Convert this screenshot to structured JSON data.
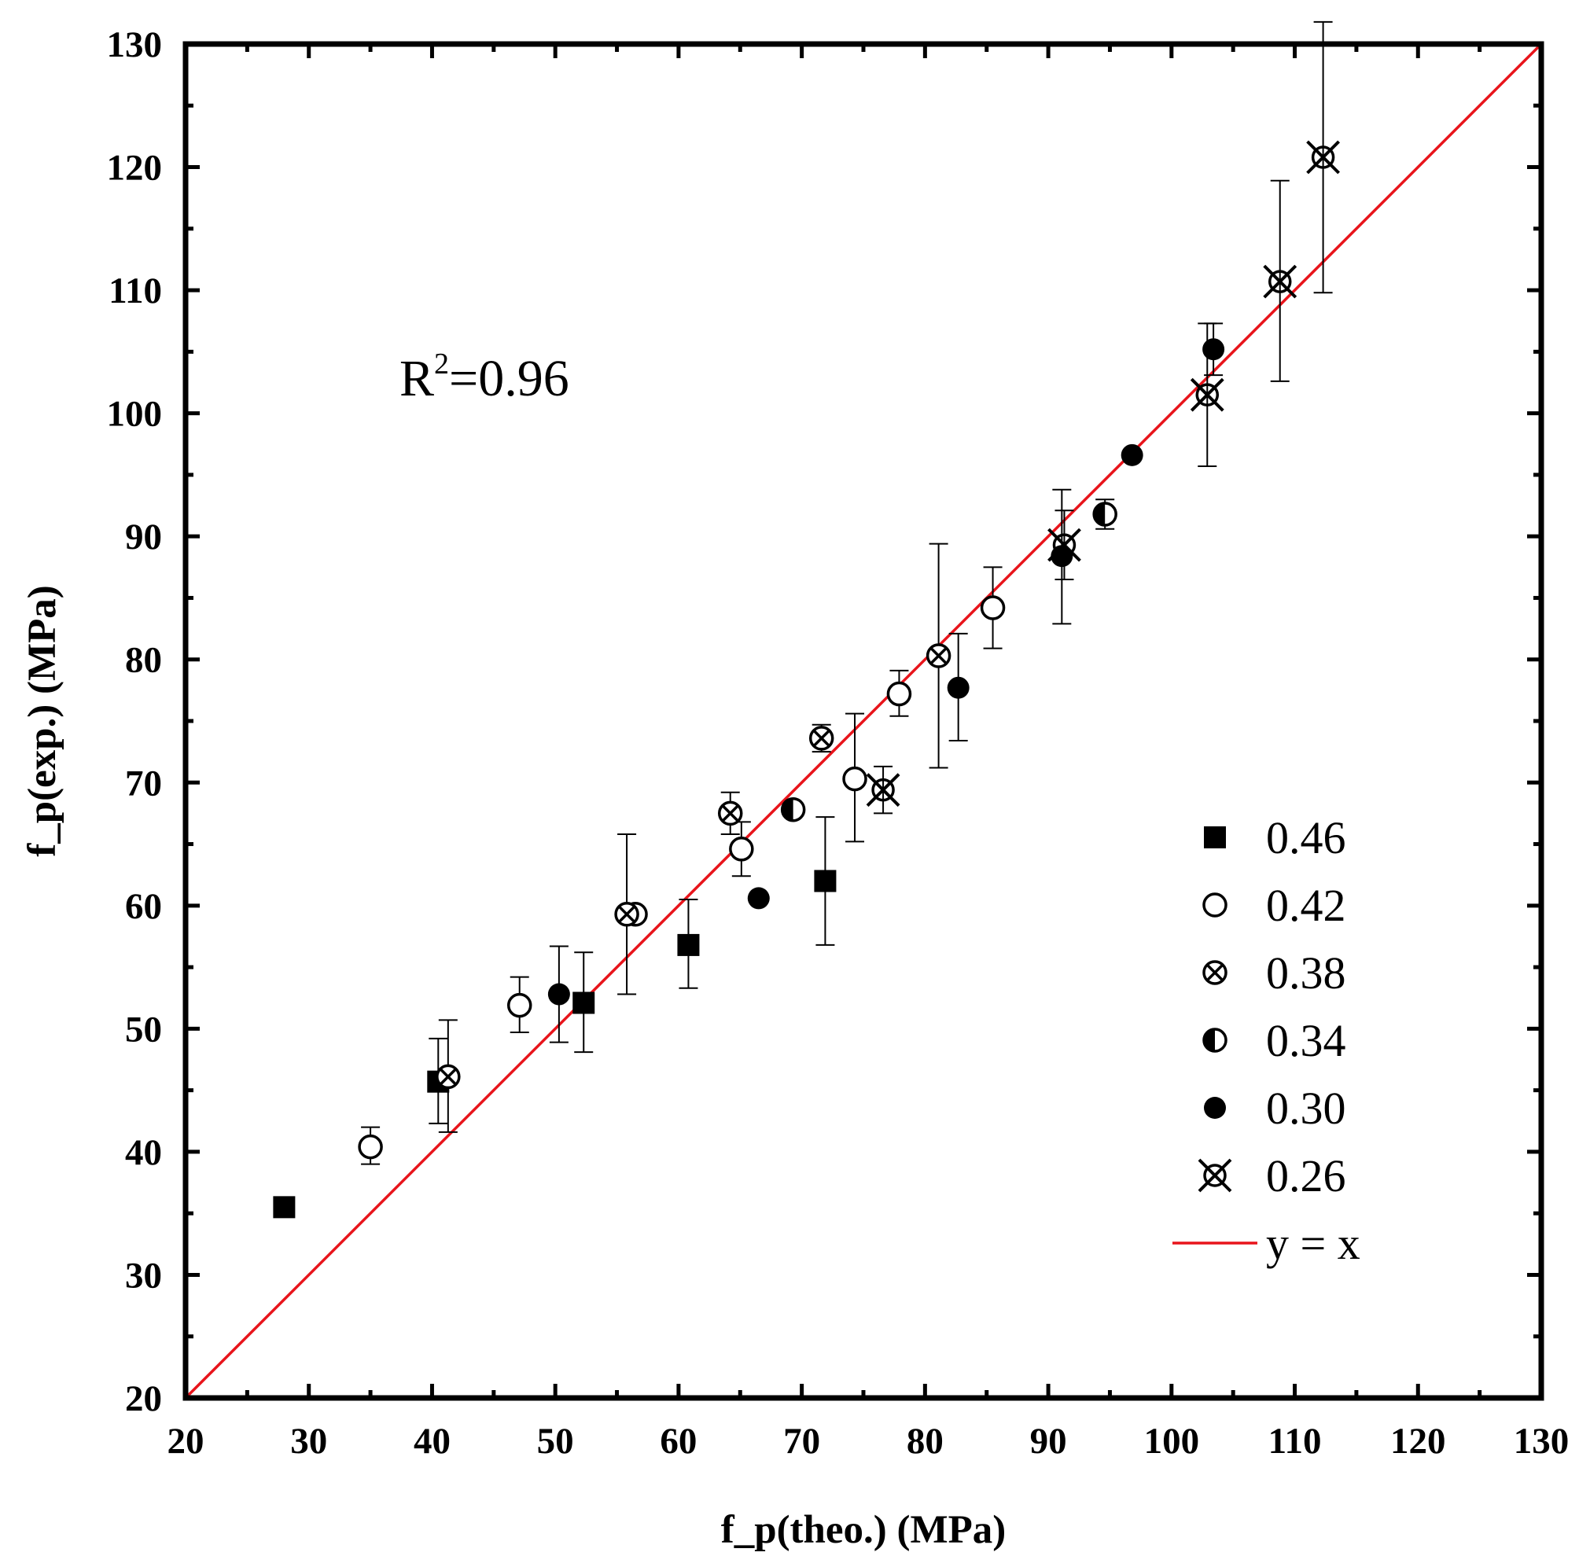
{
  "chart_data": {
    "type": "scatter",
    "title": "",
    "xlabel": "f_p(theo.) (MPa)",
    "ylabel": "f_p(exp.) (MPa)",
    "xlim": [
      20,
      130
    ],
    "ylim": [
      20,
      130
    ],
    "x_ticks": [
      "20",
      "30",
      "40",
      "50",
      "60",
      "70",
      "80",
      "90",
      "100",
      "110",
      "120",
      "130"
    ],
    "y_ticks": [
      "20",
      "30",
      "40",
      "50",
      "60",
      "70",
      "80",
      "90",
      "100",
      "110",
      "120",
      "130"
    ],
    "grid": false,
    "legend_position": "bottom-right",
    "annotation": {
      "base": "R",
      "sup": "2",
      "rest": "=0.96"
    },
    "colors": {
      "axes": "#000000",
      "reference_line": "#e8141b",
      "marker": "#000000"
    },
    "series": [
      {
        "name": "0.46",
        "marker": "filled-square",
        "points": [
          {
            "x": 28.0,
            "y": 35.5
          },
          {
            "x": 40.5,
            "y": 45.7,
            "err_low": 42.3,
            "err_high": 49.2
          },
          {
            "x": 52.3,
            "y": 52.1,
            "err_low": 48.1,
            "err_high": 56.2
          },
          {
            "x": 60.8,
            "y": 56.8,
            "err_low": 53.3,
            "err_high": 60.5
          },
          {
            "x": 71.9,
            "y": 62.0,
            "err_low": 56.8,
            "err_high": 67.2
          }
        ]
      },
      {
        "name": "0.42",
        "marker": "open-circle",
        "points": [
          {
            "x": 35.0,
            "y": 40.4,
            "err_low": 39.0,
            "err_high": 42.0
          },
          {
            "x": 47.1,
            "y": 51.9,
            "err_low": 49.7,
            "err_high": 54.2
          },
          {
            "x": 56.5,
            "y": 59.3
          },
          {
            "x": 65.1,
            "y": 64.6,
            "err_low": 62.4,
            "err_high": 66.8
          },
          {
            "x": 74.3,
            "y": 70.3,
            "err_low": 65.2,
            "err_high": 75.6
          },
          {
            "x": 77.9,
            "y": 77.2,
            "err_low": 75.4,
            "err_high": 79.1
          },
          {
            "x": 85.5,
            "y": 84.2,
            "err_low": 80.9,
            "err_high": 87.5
          }
        ]
      },
      {
        "name": "0.38",
        "marker": "crossed-circle",
        "points": [
          {
            "x": 41.3,
            "y": 46.1,
            "err_low": 41.6,
            "err_high": 50.7
          },
          {
            "x": 55.8,
            "y": 59.3,
            "err_low": 52.8,
            "err_high": 65.8
          },
          {
            "x": 64.2,
            "y": 67.5,
            "err_low": 65.8,
            "err_high": 69.2
          },
          {
            "x": 71.6,
            "y": 73.6,
            "err_low": 72.5,
            "err_high": 74.7
          },
          {
            "x": 81.1,
            "y": 80.3,
            "err_low": 71.2,
            "err_high": 89.4
          }
        ]
      },
      {
        "name": "0.34",
        "marker": "half-filled-circle",
        "points": [
          {
            "x": 69.3,
            "y": 67.8
          },
          {
            "x": 94.6,
            "y": 91.8,
            "err_low": 90.6,
            "err_high": 93.0
          }
        ]
      },
      {
        "name": "0.30",
        "marker": "filled-circle",
        "points": [
          {
            "x": 50.3,
            "y": 52.8,
            "err_low": 48.9,
            "err_high": 56.7
          },
          {
            "x": 66.5,
            "y": 60.6
          },
          {
            "x": 82.7,
            "y": 77.7,
            "err_low": 73.4,
            "err_high": 82.1
          },
          {
            "x": 91.1,
            "y": 88.4,
            "err_low": 82.9,
            "err_high": 93.8
          },
          {
            "x": 96.8,
            "y": 96.6
          },
          {
            "x": 103.4,
            "y": 105.2,
            "err_low": 103.1,
            "err_high": 107.3
          }
        ]
      },
      {
        "name": "0.26",
        "marker": "x-circle",
        "points": [
          {
            "x": 76.6,
            "y": 69.4,
            "err_low": 67.5,
            "err_high": 71.3
          },
          {
            "x": 91.3,
            "y": 89.3,
            "err_low": 86.5,
            "err_high": 92.1
          },
          {
            "x": 102.9,
            "y": 101.5,
            "err_low": 95.7,
            "err_high": 107.3
          },
          {
            "x": 108.8,
            "y": 110.7,
            "err_low": 102.6,
            "err_high": 118.9
          },
          {
            "x": 112.3,
            "y": 120.8,
            "err_low": 109.8,
            "err_high": 131.8
          }
        ]
      },
      {
        "name": "y = x",
        "type": "line",
        "x": [
          20,
          130
        ],
        "y": [
          20,
          130
        ]
      }
    ]
  }
}
